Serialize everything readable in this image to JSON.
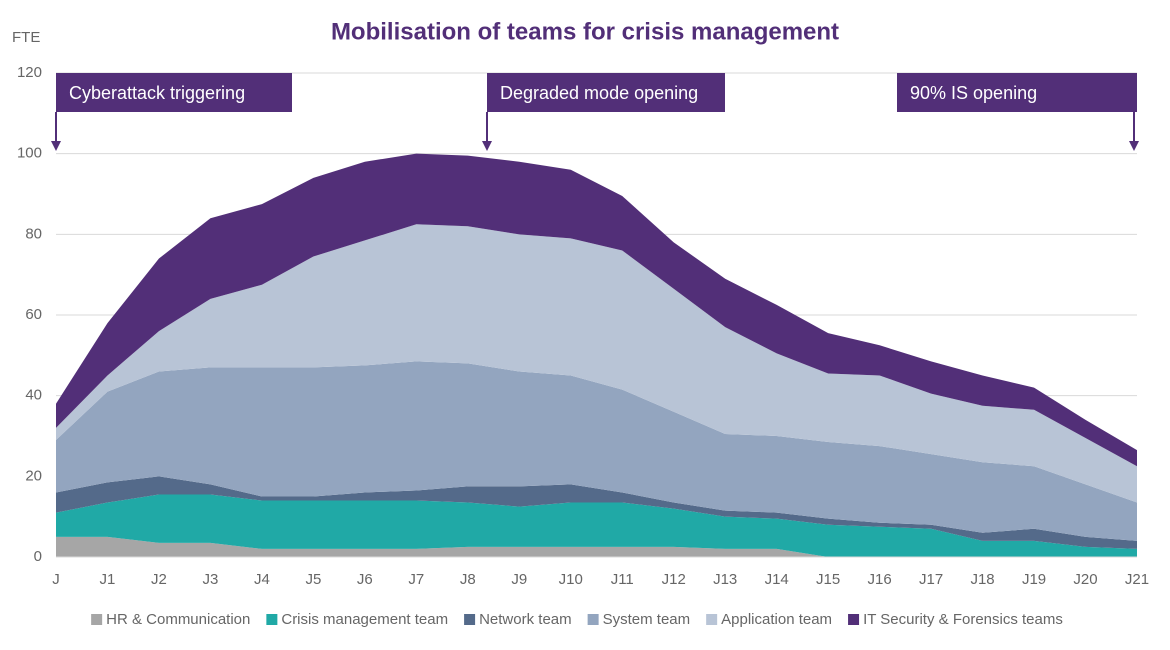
{
  "chart_data": {
    "type": "stacked_area",
    "title": "Mobilisation of teams for crisis management",
    "y_label": "FTE",
    "categories": [
      "J",
      "J1",
      "J2",
      "J3",
      "J4",
      "J5",
      "J6",
      "J7",
      "J8",
      "J9",
      "J10",
      "J11",
      "J12",
      "J13",
      "J14",
      "J15",
      "J16",
      "J17",
      "J18",
      "J19",
      "J20",
      "J21"
    ],
    "series": [
      {
        "name": "HR & Communication",
        "color": "#a6a6a6",
        "values": [
          5,
          5,
          3.5,
          3.5,
          2,
          2,
          2,
          2,
          2.5,
          2.5,
          2.5,
          2.5,
          2.5,
          2,
          2,
          0,
          0,
          0,
          0,
          0,
          0,
          0
        ]
      },
      {
        "name": "Crisis management team",
        "color": "#20a9a6",
        "values": [
          6,
          8.5,
          12,
          12,
          12,
          12,
          12,
          12,
          11,
          10,
          11,
          11,
          9.5,
          8,
          7.5,
          8,
          7.5,
          7,
          4,
          4,
          2.5,
          2
        ]
      },
      {
        "name": "Network team",
        "color": "#546a8a",
        "values": [
          5,
          5,
          4.5,
          2.5,
          1,
          1,
          2,
          2.5,
          4,
          5,
          4.5,
          2.5,
          1.5,
          1.5,
          1.5,
          1.5,
          1,
          1,
          2,
          3,
          2.5,
          2
        ]
      },
      {
        "name": "System team",
        "color": "#93a5bf",
        "values": [
          13,
          22.5,
          26,
          29,
          32,
          32,
          31.5,
          32,
          30.5,
          28.5,
          27,
          25.5,
          22.5,
          19,
          19,
          19,
          19,
          17.5,
          17.5,
          15.5,
          13,
          9.5
        ]
      },
      {
        "name": "Application team",
        "color": "#b8c4d6",
        "values": [
          3,
          4,
          10,
          17,
          20.5,
          27.5,
          31,
          34,
          34,
          34,
          34,
          34.5,
          30.5,
          26.5,
          20.5,
          17,
          17.5,
          15,
          14,
          14,
          11.5,
          9
        ]
      },
      {
        "name": "IT Security & Forensics teams",
        "color": "#522f78",
        "values": [
          6,
          13,
          18,
          20,
          20,
          19.5,
          19.5,
          17.5,
          17.5,
          18,
          17,
          13.5,
          11.5,
          12,
          12,
          10,
          7.5,
          8,
          7.5,
          5.5,
          4.5,
          4
        ]
      }
    ],
    "ylim": [
      0,
      120
    ],
    "yticks": [
      0,
      20,
      40,
      60,
      80,
      100,
      120
    ],
    "grid": true,
    "annotations": [
      "Cyberattack triggering",
      "Degraded mode opening",
      "90% IS opening"
    ],
    "legend": "bottom"
  }
}
